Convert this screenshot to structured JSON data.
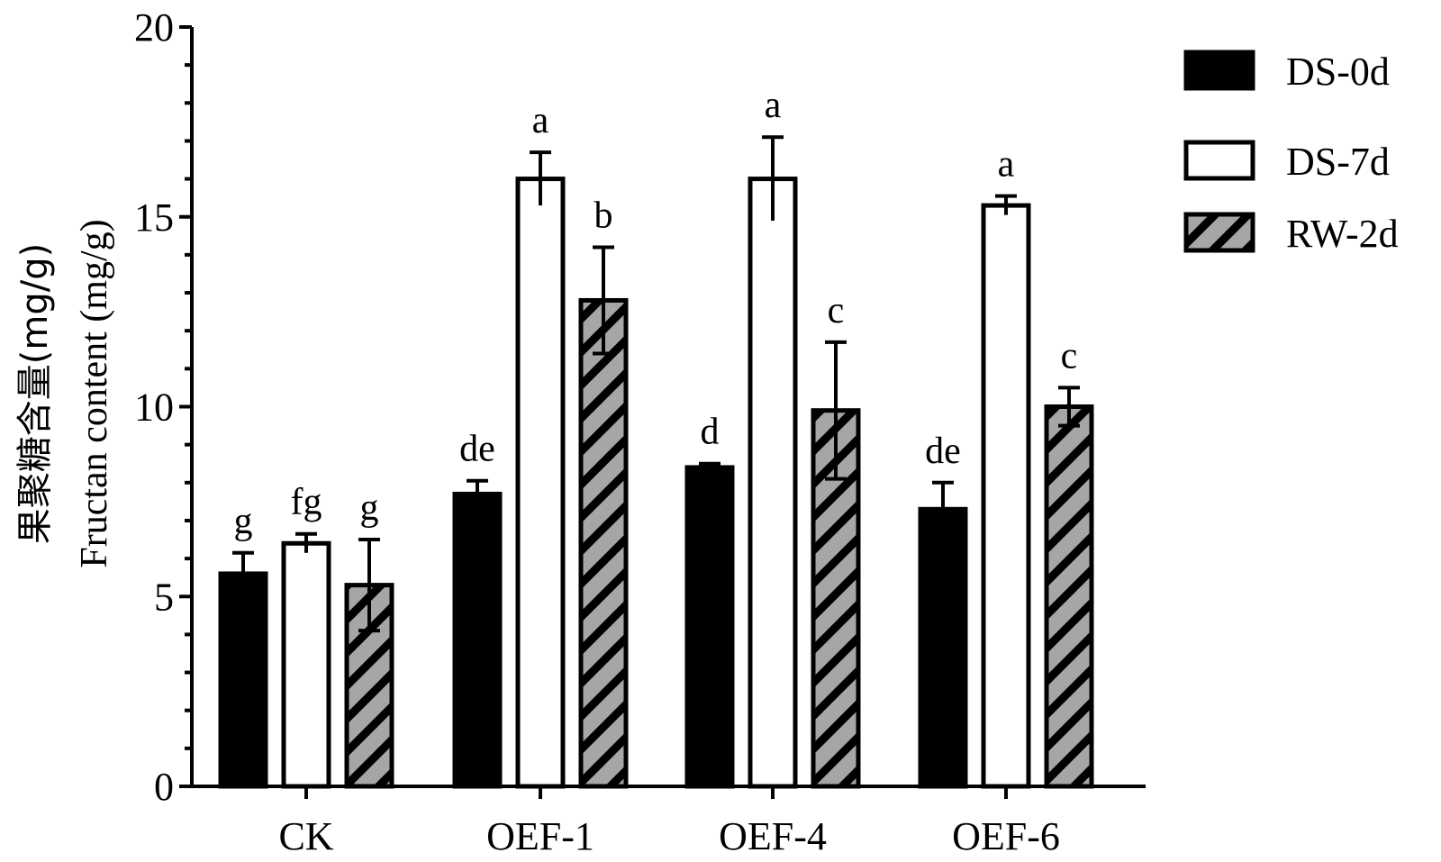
{
  "chart_data": {
    "type": "bar",
    "title": "",
    "xlabel": "",
    "ylabel_cn": "果聚糖含量(mg/g)",
    "ylabel": "Fructan content (mg/g)",
    "ylim": [
      0,
      20
    ],
    "yticks": [
      0,
      5,
      10,
      15,
      20
    ],
    "yticks_labeled": [
      0,
      5,
      10,
      15,
      20
    ],
    "grid": false,
    "legend_position": "top-right, outside plot",
    "categories": [
      "CK",
      "OEF-1",
      "OEF-4",
      "OEF-6"
    ],
    "series": [
      {
        "name": "DS-0d",
        "fill": "#000000",
        "pattern": "solid",
        "values": [
          5.6,
          7.7,
          8.4,
          7.3
        ],
        "errors": [
          0.55,
          0.35,
          0.1,
          0.7
        ],
        "significance": [
          "g",
          "de",
          "d",
          "de"
        ]
      },
      {
        "name": "DS-7d",
        "fill": "#ffffff",
        "pattern": "open",
        "values": [
          6.4,
          16.0,
          16.0,
          15.3
        ],
        "errors": [
          0.25,
          0.7,
          1.1,
          0.25
        ],
        "significance": [
          "fg",
          "a",
          "a",
          "a"
        ]
      },
      {
        "name": "RW-2d",
        "fill": "#a6a6a6",
        "pattern": "diagonal-hatch",
        "values": [
          5.3,
          12.8,
          9.9,
          10.0
        ],
        "errors": [
          1.2,
          1.4,
          1.8,
          0.5
        ],
        "significance": [
          "g",
          "b",
          "c",
          "c"
        ]
      }
    ]
  }
}
